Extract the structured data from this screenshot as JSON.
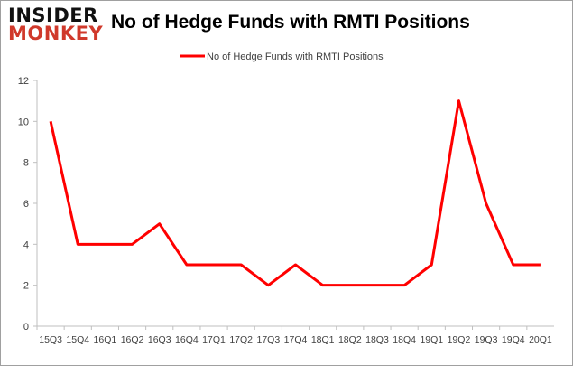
{
  "logo": {
    "line1": "INSIDER",
    "line2": "MONKEY"
  },
  "chart_data": {
    "type": "line",
    "title": "No of Hedge Funds with RMTI Positions",
    "xlabel": "",
    "ylabel": "",
    "legend": {
      "position": "top-center",
      "entries": [
        "No of Hedge Funds with RMTI Positions"
      ]
    },
    "grid": false,
    "ylim": [
      0,
      12
    ],
    "yticks": [
      0,
      2,
      4,
      6,
      8,
      10,
      12
    ],
    "categories": [
      "15Q3",
      "15Q4",
      "16Q1",
      "16Q2",
      "16Q3",
      "16Q4",
      "17Q1",
      "17Q2",
      "17Q3",
      "17Q4",
      "18Q1",
      "18Q2",
      "18Q3",
      "18Q4",
      "19Q1",
      "19Q2",
      "19Q3",
      "19Q4",
      "20Q1"
    ],
    "series": [
      {
        "name": "No of Hedge Funds with RMTI Positions",
        "color": "#ff0000",
        "values": [
          10,
          4,
          4,
          4,
          5,
          3,
          3,
          3,
          2,
          3,
          2,
          2,
          2,
          2,
          3,
          11,
          6,
          3,
          3
        ]
      }
    ]
  }
}
